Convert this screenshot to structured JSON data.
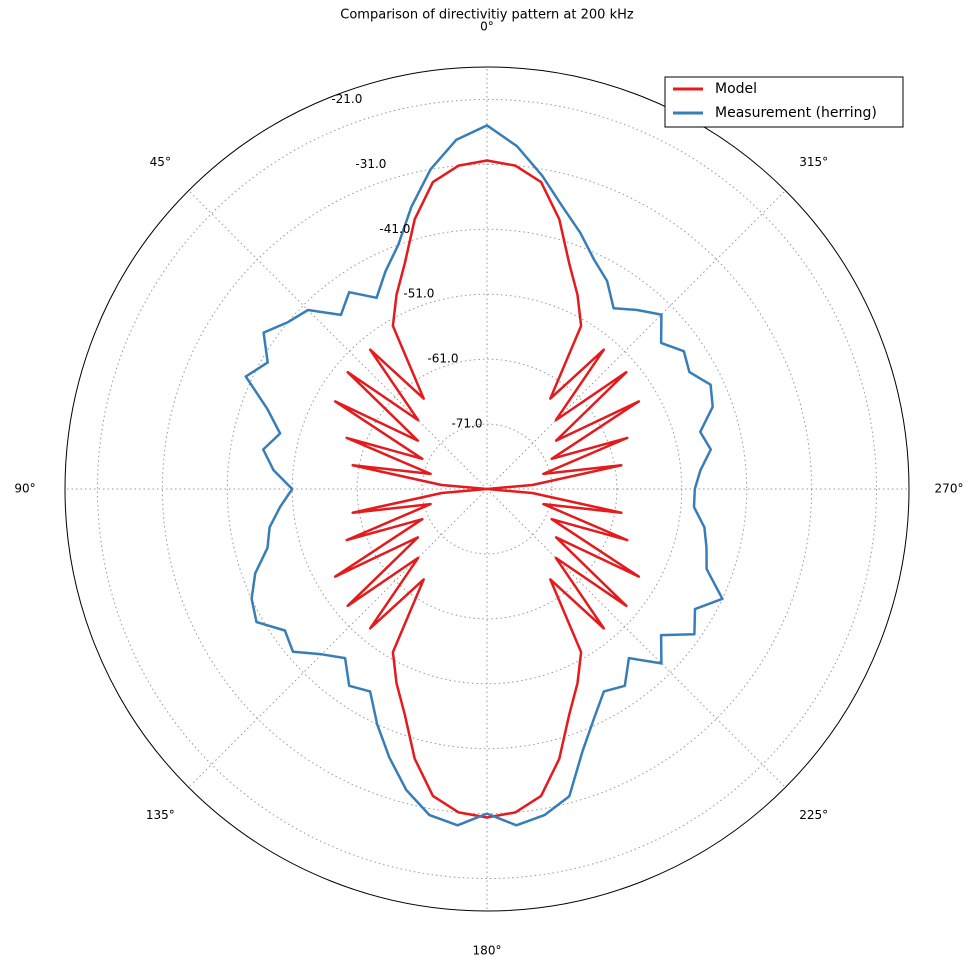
{
  "chart_data": {
    "type": "polar-line",
    "title": "Comparison of directivitiy pattern at 200 kHz",
    "theta_zero": "north",
    "theta_direction": "counterclockwise",
    "x": [
      0,
      5,
      10,
      15,
      20,
      25,
      30,
      35,
      40,
      45,
      50,
      55,
      60,
      65,
      70,
      75,
      80,
      85,
      90,
      95,
      100,
      105,
      110,
      115,
      120,
      125,
      130,
      135,
      140,
      145,
      150,
      155,
      160,
      165,
      170,
      175,
      180,
      185,
      190,
      195,
      200,
      205,
      210,
      215,
      220,
      225,
      230,
      235,
      240,
      245,
      250,
      255,
      260,
      265,
      270,
      275,
      280,
      285,
      290,
      295,
      300,
      305,
      310,
      315,
      320,
      325,
      330,
      335,
      340,
      345,
      350,
      355
    ],
    "series": [
      {
        "name": "Model",
        "color": "#e41a1c",
        "values": [
          -30.4,
          -31,
          -33,
          -38,
          -44,
          -48,
          -52,
          -64,
          -53,
          -66,
          -53,
          -68,
          -54,
          -70,
          -58,
          -72,
          -60,
          -74,
          -81,
          -74,
          -60,
          -72,
          -58,
          -70,
          -54,
          -68,
          -53,
          -66,
          -53,
          -64,
          -52,
          -48,
          -44,
          -38,
          -33,
          -31,
          -30.4,
          -31,
          -33,
          -38,
          -44,
          -48,
          -52,
          -64,
          -53,
          -66,
          -53,
          -68,
          -54,
          -70,
          -58,
          -72,
          -60,
          -74,
          -81,
          -74,
          -60,
          -72,
          -58,
          -70,
          -54,
          -68,
          -53,
          -66,
          -53,
          -64,
          -52,
          -48,
          -44,
          -38,
          -33,
          -31
        ]
      },
      {
        "name": "Measurement (herring)",
        "color": "#377eb8",
        "values": [
          -25,
          -27,
          -31,
          -36,
          -41,
          -44,
          -47,
          -44,
          -46,
          -42,
          -41,
          -39,
          -42,
          -40,
          -45,
          -48,
          -46,
          -48,
          -51,
          -49,
          -47,
          -46,
          -43,
          -41,
          -40,
          -43,
          -42,
          -45,
          -47,
          -44,
          -45,
          -41,
          -37,
          -33,
          -30,
          -29,
          -31,
          -29,
          -30,
          -32,
          -38,
          -42,
          -45,
          -44,
          -47,
          -43,
          -46,
          -42,
          -44,
          -41,
          -45,
          -46,
          -47,
          -49,
          -49,
          -48,
          -46,
          -47,
          -44,
          -43,
          -45,
          -44,
          -46,
          -43,
          -45,
          -47,
          -44,
          -42,
          -39,
          -36,
          -32,
          -28
        ]
      }
    ],
    "ylim": [
      -81,
      -16
    ],
    "yticks": [
      {
        "value": -71,
        "label": "-71.0"
      },
      {
        "value": -61,
        "label": "-61.0"
      },
      {
        "value": -51,
        "label": "-51.0"
      },
      {
        "value": -41,
        "label": "-41.0"
      },
      {
        "value": -31,
        "label": "-31.0"
      },
      {
        "value": -21,
        "label": "-21.0"
      }
    ],
    "xticks": [
      {
        "value": 0,
        "label": "0°"
      },
      {
        "value": 45,
        "label": "45°"
      },
      {
        "value": 90,
        "label": "90°"
      },
      {
        "value": 135,
        "label": "135°"
      },
      {
        "value": 180,
        "label": "180°"
      },
      {
        "value": 225,
        "label": "225°"
      },
      {
        "value": 270,
        "label": "270°"
      },
      {
        "value": 315,
        "label": "315°"
      }
    ],
    "grid": true,
    "legend": "upper right"
  }
}
